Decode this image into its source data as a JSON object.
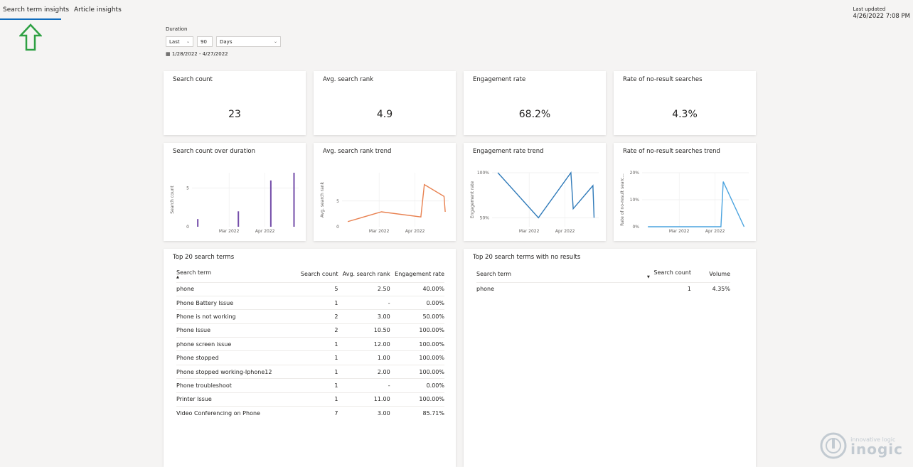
{
  "tabs": [
    {
      "label": "Search term insights",
      "active": true
    },
    {
      "label": "Article insights",
      "active": false
    }
  ],
  "last_updated": {
    "label": "Last updated",
    "value": "4/26/2022 7:08 PM"
  },
  "duration": {
    "label": "Duration",
    "mode": "Last",
    "amount": "90",
    "unit": "Days",
    "range": "1/28/2022 - 4/27/2022"
  },
  "kpis": [
    {
      "title": "Search count",
      "value": "23"
    },
    {
      "title": "Avg. search rank",
      "value": "4.9"
    },
    {
      "title": "Engagement rate",
      "value": "68.2%"
    },
    {
      "title": "Rate of no-result searches",
      "value": "4.3%"
    }
  ],
  "trend_titles": {
    "search_count": "Search count over duration",
    "rank": "Avg. search rank trend",
    "engagement": "Engagement rate trend",
    "noresult": "Rate of no-result searches trend"
  },
  "chart_data": [
    {
      "type": "bar",
      "title": "Search count over duration",
      "ylabel": "Search count",
      "x_ticks": [
        "Mar 2022",
        "Apr 2022"
      ],
      "y_ticks": [
        "0",
        "5"
      ],
      "ylim": [
        0,
        7
      ],
      "color": "#744da9",
      "x": [
        "2022-02-02",
        "2022-03-09",
        "2022-04-06",
        "2022-04-26"
      ],
      "values": [
        1,
        2,
        6,
        7
      ]
    },
    {
      "type": "line",
      "title": "Avg. search rank trend",
      "ylabel": "Avg. search rank",
      "x_ticks": [
        "Mar 2022",
        "Apr 2022"
      ],
      "y_ticks": [
        "0",
        "5"
      ],
      "ylim": [
        0,
        10.5
      ],
      "color": "#e8804f",
      "x": [
        "2022-02-02",
        "2022-03-03",
        "2022-04-06",
        "2022-04-09",
        "2022-04-26",
        "2022-04-27"
      ],
      "values": [
        1.0,
        2.9,
        1.9,
        8.2,
        5.9,
        2.9
      ]
    },
    {
      "type": "line",
      "title": "Engagement rate trend",
      "ylabel": "Engagement rate",
      "x_ticks": [
        "Mar 2022",
        "Apr 2022"
      ],
      "y_ticks": [
        "50%",
        "100%"
      ],
      "ylim": [
        40,
        100
      ],
      "color": "#2f7ab9",
      "x": [
        "2022-02-02",
        "2022-03-09",
        "2022-04-06",
        "2022-04-08",
        "2022-04-25",
        "2022-04-26"
      ],
      "values": [
        100,
        50,
        100,
        60,
        85.7,
        50
      ]
    },
    {
      "type": "line",
      "title": "Rate of no-result searches trend",
      "ylabel": "Rate of no-result searc...",
      "x_ticks": [
        "Mar 2022",
        "Apr 2022"
      ],
      "y_ticks": [
        "0%",
        "10%",
        "20%"
      ],
      "ylim": [
        0,
        20
      ],
      "color": "#4aa3df",
      "x": [
        "2022-02-02",
        "2022-04-06",
        "2022-04-08",
        "2022-04-26"
      ],
      "values": [
        0,
        0,
        16.7,
        0
      ]
    }
  ],
  "top_terms": {
    "title": "Top 20 search terms",
    "headers": [
      "Search term",
      "Search count",
      "Avg. search rank",
      "Engagement rate"
    ],
    "rows": [
      [
        "phone",
        "5",
        "2.50",
        "40.00%"
      ],
      [
        "Phone Battery Issue",
        "1",
        "-",
        "0.00%"
      ],
      [
        "Phone is not working",
        "2",
        "3.00",
        "50.00%"
      ],
      [
        "Phone Issue",
        "2",
        "10.50",
        "100.00%"
      ],
      [
        "phone screen issue",
        "1",
        "12.00",
        "100.00%"
      ],
      [
        "Phone stopped",
        "1",
        "1.00",
        "100.00%"
      ],
      [
        "Phone stopped working-Iphone12",
        "1",
        "2.00",
        "100.00%"
      ],
      [
        "Phone troubleshoot",
        "1",
        "-",
        "0.00%"
      ],
      [
        "Printer Issue",
        "1",
        "11.00",
        "100.00%"
      ],
      [
        "Video Conferencing on Phone",
        "7",
        "3.00",
        "85.71%"
      ]
    ]
  },
  "no_result_terms": {
    "title": "Top 20 search terms with no results",
    "headers": [
      "Search term",
      "Search count",
      "Volume"
    ],
    "rows": [
      [
        "phone",
        "1",
        "4.35%"
      ]
    ]
  },
  "watermark": {
    "line1": "innovative logic",
    "line2": "inogic"
  }
}
